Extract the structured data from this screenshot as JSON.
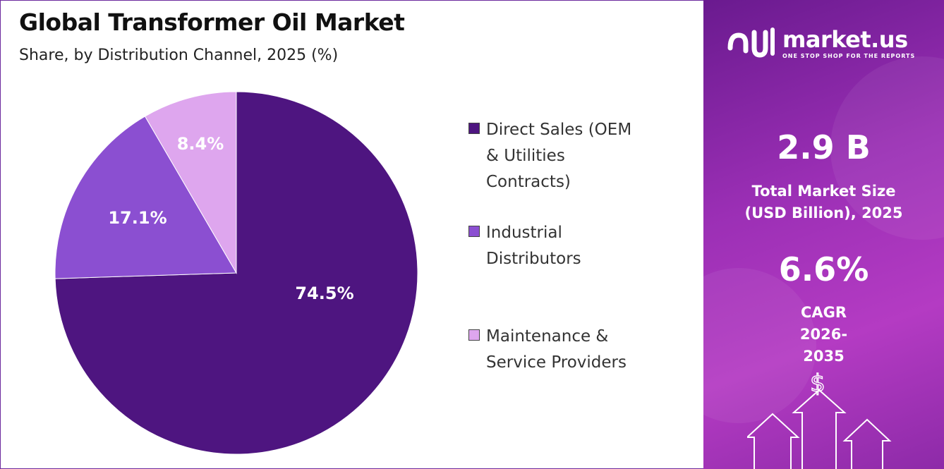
{
  "title": "Global Transformer Oil Market",
  "subtitle": "Share, by Distribution Channel, 2025 (%)",
  "chart_data": {
    "type": "pie",
    "title": "Global Transformer Oil Market",
    "subtitle": "Share, by Distribution Channel, 2025 (%)",
    "start_angle": "12 o'clock, clockwise",
    "legend_position": "right",
    "slices": [
      {
        "name": "Direct Sales (OEM & Utilities Contracts)",
        "value": 74.5,
        "label": "74.5%",
        "color": "#4e1580"
      },
      {
        "name": "Industrial Distributors",
        "value": 17.1,
        "label": "17.1%",
        "color": "#8b4fd1"
      },
      {
        "name": "Maintenance & Service Providers",
        "value": 8.4,
        "label": "8.4%",
        "color": "#dea6ee"
      }
    ]
  },
  "legend": {
    "items": [
      {
        "label": "Direct Sales (OEM & Utilities Contracts)",
        "color": "#4e1580"
      },
      {
        "label": "Industrial Distributors",
        "color": "#8b4fd1"
      },
      {
        "label": "Maintenance & Service Providers",
        "color": "#dea6ee"
      }
    ]
  },
  "sidebar": {
    "brand_name": "market.us",
    "brand_tagline": "ONE STOP SHOP FOR THE REPORTS",
    "market_size_value": "2.9 B",
    "market_size_label": "Total Market Size (USD Billion), 2025",
    "cagr_value": "6.6%",
    "cagr_label": "CAGR 2026-2035",
    "icon": "dollar-growth-arrows-icon"
  },
  "colors": {
    "accent": "#6b2a9e",
    "panel_gradient_start": "#6a1a8f",
    "panel_gradient_end": "#b43bc3"
  }
}
